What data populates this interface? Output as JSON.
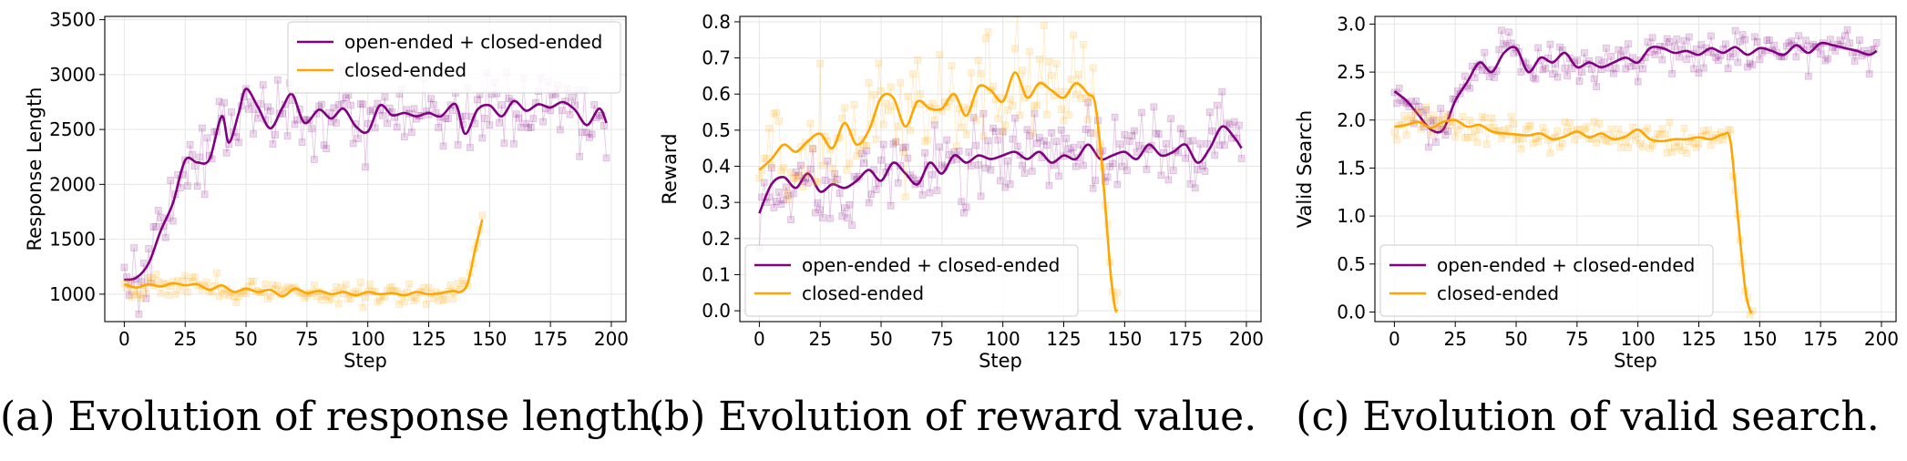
{
  "colors": {
    "combined": "#800080",
    "closed": "#FFA500"
  },
  "chart_data": [
    {
      "type": "line",
      "caption": "(a) Evolution of response length.",
      "xlabel": "Step",
      "ylabel": "Response Length",
      "xlim": [
        -8,
        206
      ],
      "ylim": [
        750,
        3530
      ],
      "xticks": [
        0,
        25,
        50,
        75,
        100,
        125,
        150,
        175,
        200
      ],
      "yticks": [
        1000,
        1500,
        2000,
        2500,
        3000,
        3500
      ],
      "tick_decimals": 0,
      "legend": {
        "placement": "top-right"
      },
      "grid": true,
      "series": [
        {
          "name": "open-ended + closed-ended",
          "color": "#800080",
          "x_end": 198,
          "noise": 210,
          "smooth": [
            [
              0,
              1130
            ],
            [
              5,
              1150
            ],
            [
              10,
              1280
            ],
            [
              15,
              1580
            ],
            [
              20,
              1830
            ],
            [
              25,
              2220
            ],
            [
              30,
              2200
            ],
            [
              35,
              2230
            ],
            [
              40,
              2620
            ],
            [
              43,
              2380
            ],
            [
              47,
              2650
            ],
            [
              50,
              2870
            ],
            [
              55,
              2700
            ],
            [
              60,
              2510
            ],
            [
              65,
              2700
            ],
            [
              69,
              2820
            ],
            [
              74,
              2560
            ],
            [
              80,
              2680
            ],
            [
              85,
              2600
            ],
            [
              90,
              2690
            ],
            [
              95,
              2530
            ],
            [
              100,
              2480
            ],
            [
              105,
              2720
            ],
            [
              110,
              2630
            ],
            [
              115,
              2650
            ],
            [
              120,
              2620
            ],
            [
              125,
              2650
            ],
            [
              130,
              2620
            ],
            [
              136,
              2730
            ],
            [
              140,
              2460
            ],
            [
              145,
              2680
            ],
            [
              150,
              2720
            ],
            [
              155,
              2620
            ],
            [
              160,
              2760
            ],
            [
              165,
              2670
            ],
            [
              170,
              2730
            ],
            [
              175,
              2700
            ],
            [
              180,
              2750
            ],
            [
              185,
              2680
            ],
            [
              190,
              2540
            ],
            [
              195,
              2690
            ],
            [
              198,
              2560
            ]
          ]
        },
        {
          "name": "closed-ended",
          "color": "#FFA500",
          "x_end": 147,
          "noise": 70,
          "smooth": [
            [
              0,
              1090
            ],
            [
              5,
              1060
            ],
            [
              10,
              1090
            ],
            [
              15,
              1070
            ],
            [
              20,
              1100
            ],
            [
              25,
              1080
            ],
            [
              30,
              1090
            ],
            [
              35,
              1040
            ],
            [
              40,
              1080
            ],
            [
              45,
              1020
            ],
            [
              50,
              1050
            ],
            [
              55,
              1020
            ],
            [
              60,
              1040
            ],
            [
              65,
              980
            ],
            [
              70,
              1050
            ],
            [
              75,
              1010
            ],
            [
              80,
              1030
            ],
            [
              85,
              1000
            ],
            [
              90,
              1020
            ],
            [
              95,
              990
            ],
            [
              100,
              1020
            ],
            [
              105,
              1000
            ],
            [
              110,
              1010
            ],
            [
              115,
              990
            ],
            [
              120,
              1020
            ],
            [
              125,
              1000
            ],
            [
              130,
              1010
            ],
            [
              135,
              1030
            ],
            [
              138,
              1020
            ],
            [
              141,
              1100
            ],
            [
              144,
              1400
            ],
            [
              147,
              1680
            ]
          ]
        }
      ]
    },
    {
      "type": "line",
      "caption": "(b) Evolution of reward value.",
      "xlabel": "Step",
      "ylabel": "Reward",
      "xlim": [
        -8,
        206
      ],
      "ylim": [
        -0.03,
        0.815
      ],
      "xticks": [
        0,
        25,
        50,
        75,
        100,
        125,
        150,
        175,
        200
      ],
      "yticks": [
        0.0,
        0.1,
        0.2,
        0.3,
        0.4,
        0.5,
        0.6,
        0.7,
        0.8
      ],
      "tick_decimals": 1,
      "legend": {
        "placement": "bottom-left"
      },
      "grid": true,
      "series": [
        {
          "name": "open-ended + closed-ended",
          "color": "#800080",
          "x_end": 198,
          "noise": 0.07,
          "smooth": [
            [
              0,
              0.27
            ],
            [
              5,
              0.35
            ],
            [
              10,
              0.37
            ],
            [
              15,
              0.34
            ],
            [
              20,
              0.38
            ],
            [
              25,
              0.33
            ],
            [
              30,
              0.35
            ],
            [
              35,
              0.34
            ],
            [
              40,
              0.36
            ],
            [
              45,
              0.39
            ],
            [
              50,
              0.36
            ],
            [
              55,
              0.41
            ],
            [
              60,
              0.38
            ],
            [
              65,
              0.35
            ],
            [
              70,
              0.41
            ],
            [
              75,
              0.38
            ],
            [
              80,
              0.43
            ],
            [
              85,
              0.41
            ],
            [
              90,
              0.43
            ],
            [
              95,
              0.42
            ],
            [
              100,
              0.43
            ],
            [
              105,
              0.44
            ],
            [
              110,
              0.42
            ],
            [
              115,
              0.44
            ],
            [
              120,
              0.41
            ],
            [
              125,
              0.43
            ],
            [
              130,
              0.42
            ],
            [
              135,
              0.46
            ],
            [
              140,
              0.42
            ],
            [
              145,
              0.43
            ],
            [
              150,
              0.44
            ],
            [
              155,
              0.42
            ],
            [
              160,
              0.46
            ],
            [
              165,
              0.43
            ],
            [
              170,
              0.44
            ],
            [
              175,
              0.46
            ],
            [
              180,
              0.41
            ],
            [
              185,
              0.45
            ],
            [
              190,
              0.51
            ],
            [
              195,
              0.48
            ],
            [
              198,
              0.45
            ]
          ]
        },
        {
          "name": "closed-ended",
          "color": "#FFA500",
          "x_end": 147,
          "noise": 0.09,
          "smooth": [
            [
              0,
              0.39
            ],
            [
              5,
              0.42
            ],
            [
              10,
              0.46
            ],
            [
              15,
              0.44
            ],
            [
              20,
              0.47
            ],
            [
              25,
              0.49
            ],
            [
              30,
              0.45
            ],
            [
              35,
              0.52
            ],
            [
              40,
              0.46
            ],
            [
              45,
              0.5
            ],
            [
              50,
              0.59
            ],
            [
              55,
              0.59
            ],
            [
              60,
              0.51
            ],
            [
              65,
              0.58
            ],
            [
              70,
              0.56
            ],
            [
              75,
              0.56
            ],
            [
              80,
              0.6
            ],
            [
              85,
              0.54
            ],
            [
              90,
              0.62
            ],
            [
              95,
              0.61
            ],
            [
              100,
              0.58
            ],
            [
              105,
              0.66
            ],
            [
              110,
              0.59
            ],
            [
              115,
              0.63
            ],
            [
              120,
              0.61
            ],
            [
              125,
              0.59
            ],
            [
              130,
              0.63
            ],
            [
              135,
              0.6
            ],
            [
              138,
              0.57
            ],
            [
              141,
              0.38
            ],
            [
              144,
              0.12
            ],
            [
              146,
              0.01
            ],
            [
              147,
              0.0
            ]
          ]
        }
      ]
    },
    {
      "type": "line",
      "caption": "(c) Evolution of valid search.",
      "xlabel": "Step",
      "ylabel": "Valid Search",
      "xlim": [
        -8,
        206
      ],
      "ylim": [
        -0.1,
        3.08
      ],
      "xticks": [
        0,
        25,
        50,
        75,
        100,
        125,
        150,
        175,
        200
      ],
      "yticks": [
        0.0,
        0.5,
        1.0,
        1.5,
        2.0,
        2.5,
        3.0
      ],
      "tick_decimals": 1,
      "legend": {
        "placement": "bottom-left"
      },
      "grid": true,
      "series": [
        {
          "name": "open-ended + closed-ended",
          "color": "#800080",
          "x_end": 198,
          "noise": 0.12,
          "smooth": [
            [
              0,
              2.3
            ],
            [
              5,
              2.2
            ],
            [
              10,
              2.05
            ],
            [
              15,
              1.9
            ],
            [
              20,
              1.9
            ],
            [
              25,
              2.2
            ],
            [
              30,
              2.4
            ],
            [
              35,
              2.6
            ],
            [
              40,
              2.5
            ],
            [
              45,
              2.7
            ],
            [
              50,
              2.75
            ],
            [
              55,
              2.5
            ],
            [
              60,
              2.65
            ],
            [
              65,
              2.6
            ],
            [
              70,
              2.7
            ],
            [
              75,
              2.55
            ],
            [
              80,
              2.6
            ],
            [
              85,
              2.55
            ],
            [
              90,
              2.6
            ],
            [
              95,
              2.65
            ],
            [
              100,
              2.6
            ],
            [
              105,
              2.75
            ],
            [
              110,
              2.75
            ],
            [
              115,
              2.7
            ],
            [
              120,
              2.72
            ],
            [
              125,
              2.68
            ],
            [
              130,
              2.75
            ],
            [
              135,
              2.7
            ],
            [
              140,
              2.76
            ],
            [
              145,
              2.68
            ],
            [
              150,
              2.75
            ],
            [
              155,
              2.72
            ],
            [
              160,
              2.68
            ],
            [
              165,
              2.78
            ],
            [
              170,
              2.7
            ],
            [
              175,
              2.8
            ],
            [
              180,
              2.78
            ],
            [
              185,
              2.75
            ],
            [
              190,
              2.72
            ],
            [
              195,
              2.68
            ],
            [
              198,
              2.72
            ]
          ]
        },
        {
          "name": "closed-ended",
          "color": "#FFA500",
          "x_end": 147,
          "noise": 0.1,
          "smooth": [
            [
              0,
              1.93
            ],
            [
              5,
              1.95
            ],
            [
              10,
              1.98
            ],
            [
              15,
              1.92
            ],
            [
              20,
              1.98
            ],
            [
              25,
              2.0
            ],
            [
              30,
              1.93
            ],
            [
              35,
              1.95
            ],
            [
              40,
              1.88
            ],
            [
              45,
              1.86
            ],
            [
              50,
              1.85
            ],
            [
              55,
              1.84
            ],
            [
              60,
              1.86
            ],
            [
              65,
              1.8
            ],
            [
              70,
              1.83
            ],
            [
              75,
              1.88
            ],
            [
              80,
              1.82
            ],
            [
              85,
              1.86
            ],
            [
              90,
              1.8
            ],
            [
              95,
              1.83
            ],
            [
              100,
              1.9
            ],
            [
              105,
              1.8
            ],
            [
              110,
              1.78
            ],
            [
              115,
              1.8
            ],
            [
              120,
              1.8
            ],
            [
              125,
              1.82
            ],
            [
              130,
              1.8
            ],
            [
              135,
              1.85
            ],
            [
              138,
              1.78
            ],
            [
              141,
              1.0
            ],
            [
              144,
              0.25
            ],
            [
              146,
              0.02
            ],
            [
              147,
              0.0
            ]
          ]
        }
      ]
    }
  ]
}
